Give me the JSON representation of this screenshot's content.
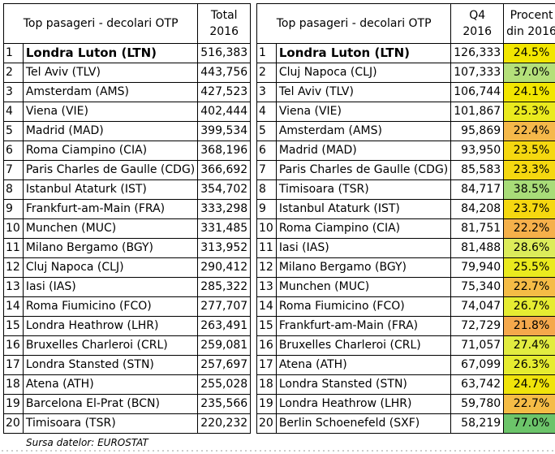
{
  "left_table": {
    "header_name": "Top pasageri - decolari OTP",
    "header_total_line1": "Total",
    "header_total_line2": "2016",
    "rows": [
      {
        "rank": "1",
        "name": "Londra Luton (LTN)",
        "value": "516,383"
      },
      {
        "rank": "2",
        "name": "Tel Aviv (TLV)",
        "value": "443,756"
      },
      {
        "rank": "3",
        "name": "Amsterdam (AMS)",
        "value": "427,523"
      },
      {
        "rank": "4",
        "name": "Viena (VIE)",
        "value": "402,444"
      },
      {
        "rank": "5",
        "name": "Madrid (MAD)",
        "value": "399,534"
      },
      {
        "rank": "6",
        "name": "Roma Ciampino (CIA)",
        "value": "368,196"
      },
      {
        "rank": "7",
        "name": "Paris Charles de Gaulle (CDG)",
        "value": "366,692"
      },
      {
        "rank": "8",
        "name": "Istanbul Ataturk (IST)",
        "value": "354,702"
      },
      {
        "rank": "9",
        "name": "Frankfurt-am-Main (FRA)",
        "value": "333,298"
      },
      {
        "rank": "10",
        "name": "Munchen (MUC)",
        "value": "331,485"
      },
      {
        "rank": "11",
        "name": "Milano Bergamo (BGY)",
        "value": "313,952"
      },
      {
        "rank": "12",
        "name": "Cluj Napoca (CLJ)",
        "value": "290,412"
      },
      {
        "rank": "13",
        "name": "Iasi (IAS)",
        "value": "285,322"
      },
      {
        "rank": "14",
        "name": "Roma Fiumicino (FCO)",
        "value": "277,707"
      },
      {
        "rank": "15",
        "name": "Londra Heathrow (LHR)",
        "value": "263,491"
      },
      {
        "rank": "16",
        "name": "Bruxelles Charleroi (CRL)",
        "value": "259,081"
      },
      {
        "rank": "17",
        "name": "Londra Stansted (STN)",
        "value": "257,697"
      },
      {
        "rank": "18",
        "name": "Atena (ATH)",
        "value": "255,028"
      },
      {
        "rank": "19",
        "name": "Barcelona El-Prat (BCN)",
        "value": "235,566"
      },
      {
        "rank": "20",
        "name": "Timisoara (TSR)",
        "value": "220,232"
      }
    ]
  },
  "right_table": {
    "header_name": "Top pasageri - decolari OTP",
    "header_q4_line1": "Q4",
    "header_q4_line2": "2016",
    "header_pct_line1": "Procent",
    "header_pct_line2": "din 2016",
    "rows": [
      {
        "rank": "1",
        "name": "Londra Luton (LTN)",
        "value": "126,333",
        "pct": "24.5%",
        "color": "#f2e600"
      },
      {
        "rank": "2",
        "name": "Cluj Napoca (CLJ)",
        "value": "107,333",
        "pct": "37.0%",
        "color": "#b4e07a"
      },
      {
        "rank": "3",
        "name": "Tel Aviv (TLV)",
        "value": "106,744",
        "pct": "24.1%",
        "color": "#f2e600"
      },
      {
        "rank": "4",
        "name": "Viena (VIE)",
        "value": "101,867",
        "pct": "25.3%",
        "color": "#eaea1e"
      },
      {
        "rank": "5",
        "name": "Amsterdam (AMS)",
        "value": "95,869",
        "pct": "22.4%",
        "color": "#f5b84a"
      },
      {
        "rank": "6",
        "name": "Madrid (MAD)",
        "value": "93,950",
        "pct": "23.5%",
        "color": "#f5d810"
      },
      {
        "rank": "7",
        "name": "Paris Charles de Gaulle (CDG)",
        "value": "85,583",
        "pct": "23.3%",
        "color": "#f5d810"
      },
      {
        "rank": "8",
        "name": "Timisoara (TSR)",
        "value": "84,717",
        "pct": "38.5%",
        "color": "#a8dc78"
      },
      {
        "rank": "9",
        "name": "Istanbul Ataturk (IST)",
        "value": "84,208",
        "pct": "23.7%",
        "color": "#f5d810"
      },
      {
        "rank": "10",
        "name": "Roma Ciampino (CIA)",
        "value": "81,751",
        "pct": "22.2%",
        "color": "#f5b04a"
      },
      {
        "rank": "11",
        "name": "Iasi (IAS)",
        "value": "81,488",
        "pct": "28.6%",
        "color": "#dcec5a"
      },
      {
        "rank": "12",
        "name": "Milano Bergamo (BGY)",
        "value": "79,940",
        "pct": "25.5%",
        "color": "#eaea1e"
      },
      {
        "rank": "13",
        "name": "Munchen (MUC)",
        "value": "75,340",
        "pct": "22.7%",
        "color": "#f5bc46"
      },
      {
        "rank": "14",
        "name": "Roma Fiumicino (FCO)",
        "value": "74,047",
        "pct": "26.7%",
        "color": "#e6ec32"
      },
      {
        "rank": "15",
        "name": "Frankfurt-am-Main (FRA)",
        "value": "72,729",
        "pct": "21.8%",
        "color": "#f5a84c"
      },
      {
        "rank": "16",
        "name": "Bruxelles Charleroi (CRL)",
        "value": "71,057",
        "pct": "27.4%",
        "color": "#e2ec40"
      },
      {
        "rank": "17",
        "name": "Atena (ATH)",
        "value": "67,099",
        "pct": "26.3%",
        "color": "#e6ec30"
      },
      {
        "rank": "18",
        "name": "Londra Stansted (STN)",
        "value": "63,742",
        "pct": "24.7%",
        "color": "#f0e40a"
      },
      {
        "rank": "19",
        "name": "Londra Heathrow (LHR)",
        "value": "59,780",
        "pct": "22.7%",
        "color": "#f5bc46"
      },
      {
        "rank": "20",
        "name": "Berlin Schoenefeld (SXF)",
        "value": "58,219",
        "pct": "77.0%",
        "color": "#6cc46a"
      }
    ]
  },
  "footer": {
    "source": "Sursa datelor: EUROSTAT"
  }
}
